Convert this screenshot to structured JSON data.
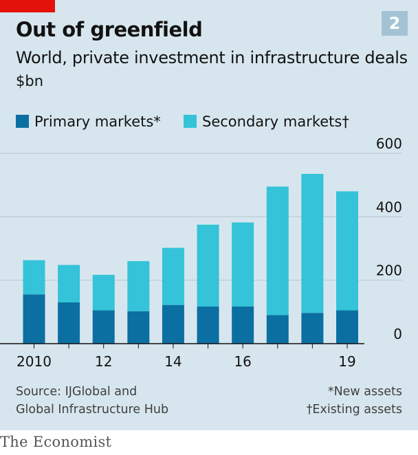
{
  "header": {
    "badge": "2",
    "title": "Out of greenfield",
    "subtitle": "World, private investment in infrastructure deals",
    "unit": "$bn"
  },
  "legend": [
    {
      "label": "Primary markets*",
      "color": "#0c6fa2"
    },
    {
      "label": "Secondary markets†",
      "color": "#34c3d8"
    }
  ],
  "chart_data": {
    "type": "bar",
    "stacked": true,
    "categories": [
      "2010",
      "2011",
      "2012",
      "2013",
      "2014",
      "2015",
      "2016",
      "2017",
      "2018",
      "2019"
    ],
    "x_tick_labels": [
      "2010",
      "",
      "12",
      "",
      "14",
      "",
      "16",
      "",
      "",
      "19"
    ],
    "series": [
      {
        "name": "Primary markets*",
        "color": "#0c6fa2",
        "values": [
          155,
          130,
          105,
          102,
          122,
          117,
          117,
          90,
          97,
          105
        ]
      },
      {
        "name": "Secondary markets†",
        "color": "#34c3d8",
        "values": [
          108,
          118,
          112,
          158,
          180,
          258,
          265,
          405,
          438,
          375
        ]
      }
    ],
    "ylim": [
      0,
      600
    ],
    "y_ticks": [
      0,
      200,
      400,
      600
    ],
    "y_axis_position": "right",
    "grid": true,
    "legend_position": "top-left"
  },
  "footer": {
    "source_line1": "Source: IJGlobal and",
    "source_line2": "Global Infrastructure Hub",
    "note1": "*New assets",
    "note2": "†Existing assets",
    "brand": "The Economist"
  }
}
